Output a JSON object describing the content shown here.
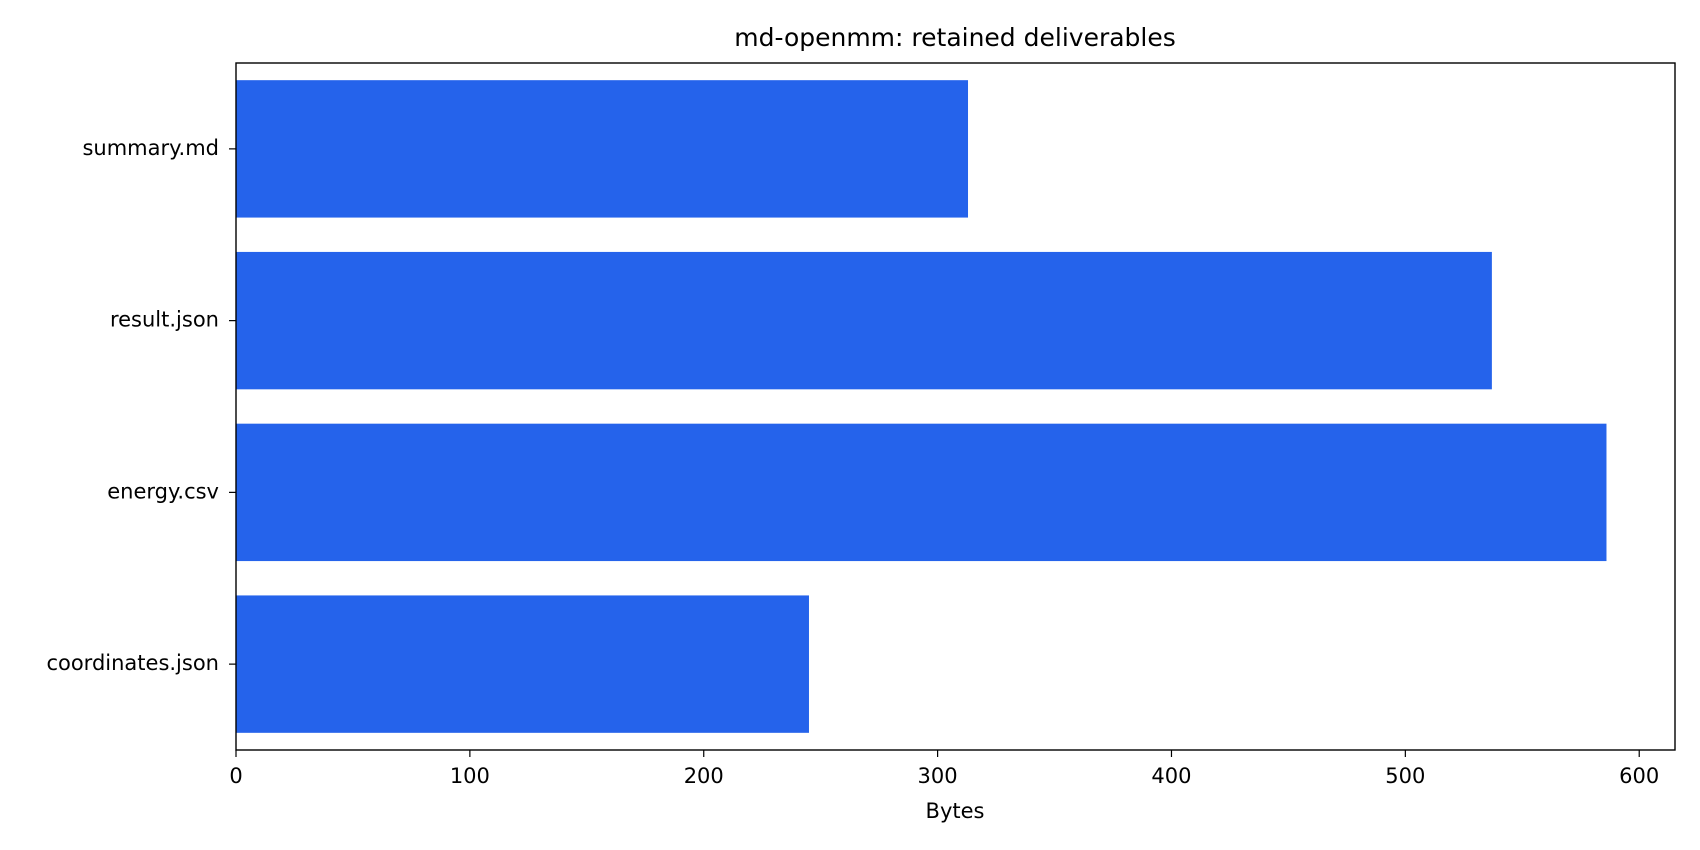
{
  "chart_data": {
    "type": "barh",
    "title": "md-openmm: retained deliverables",
    "xlabel": "Bytes",
    "categories": [
      "summary.md",
      "result.json",
      "energy.csv",
      "coordinates.json"
    ],
    "values": [
      313,
      537,
      586,
      245
    ],
    "color": "#2563eb",
    "xlim": [
      0,
      615.3
    ],
    "xticks": [
      0,
      100,
      200,
      300,
      400,
      500,
      600
    ],
    "grid": false
  }
}
